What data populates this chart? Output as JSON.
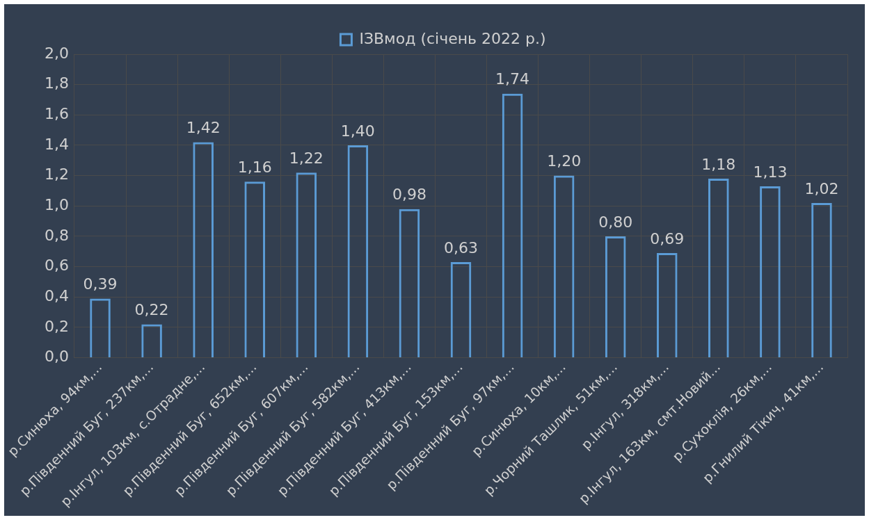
{
  "chart_data": {
    "type": "bar",
    "categories": [
      "р.Синюха, 94км,...",
      "р.Південний Буг, 237км,...",
      "р.Інгул, 103км, с.Отрадне,...",
      "р.Південний Буг, 652км,...",
      "р.Південний Буг, 607км,...",
      "р.Південний Буг, 582км,...",
      "р.Південний Буг, 413км,...",
      "р.Південний Буг, 153км,...",
      "р.Південний Буг, 97км,...",
      "р.Синюха, 10км,...",
      "р.Чорний Ташлик, 51км,...",
      "р.Інгул, 318км,...",
      "р.Інгул, 163км, смт.Новий...",
      "р.Сухоклія, 26км,...",
      "р.Гнилий Тікич, 41км,..."
    ],
    "series": [
      {
        "name": "ІЗВмод (січень 2022 р.)",
        "color": "#5b9bd5",
        "values": [
          0.39,
          0.22,
          1.42,
          1.16,
          1.22,
          1.4,
          0.98,
          0.63,
          1.74,
          1.2,
          0.8,
          0.69,
          1.18,
          1.13,
          1.02
        ],
        "value_labels": [
          "0,39",
          "0,22",
          "1,42",
          "1,16",
          "1,22",
          "1,40",
          "0,98",
          "0,63",
          "1,74",
          "1,20",
          "0,80",
          "0,69",
          "1,18",
          "1,13",
          "1,02"
        ]
      }
    ],
    "ylim": [
      0,
      2
    ],
    "yticks": [
      {
        "value": 0,
        "label": "0,0"
      },
      {
        "value": 0.2,
        "label": "0,2"
      },
      {
        "value": 0.4,
        "label": "0,4"
      },
      {
        "value": 0.6,
        "label": "0,6"
      },
      {
        "value": 0.8,
        "label": "0,8"
      },
      {
        "value": 1,
        "label": "1,0"
      },
      {
        "value": 1.2,
        "label": "1,2"
      },
      {
        "value": 1.4,
        "label": "1,4"
      },
      {
        "value": 1.6,
        "label": "1,6"
      },
      {
        "value": 1.8,
        "label": "1,8"
      },
      {
        "value": 2,
        "label": "2,0"
      }
    ],
    "grid": true,
    "legend": "top"
  }
}
